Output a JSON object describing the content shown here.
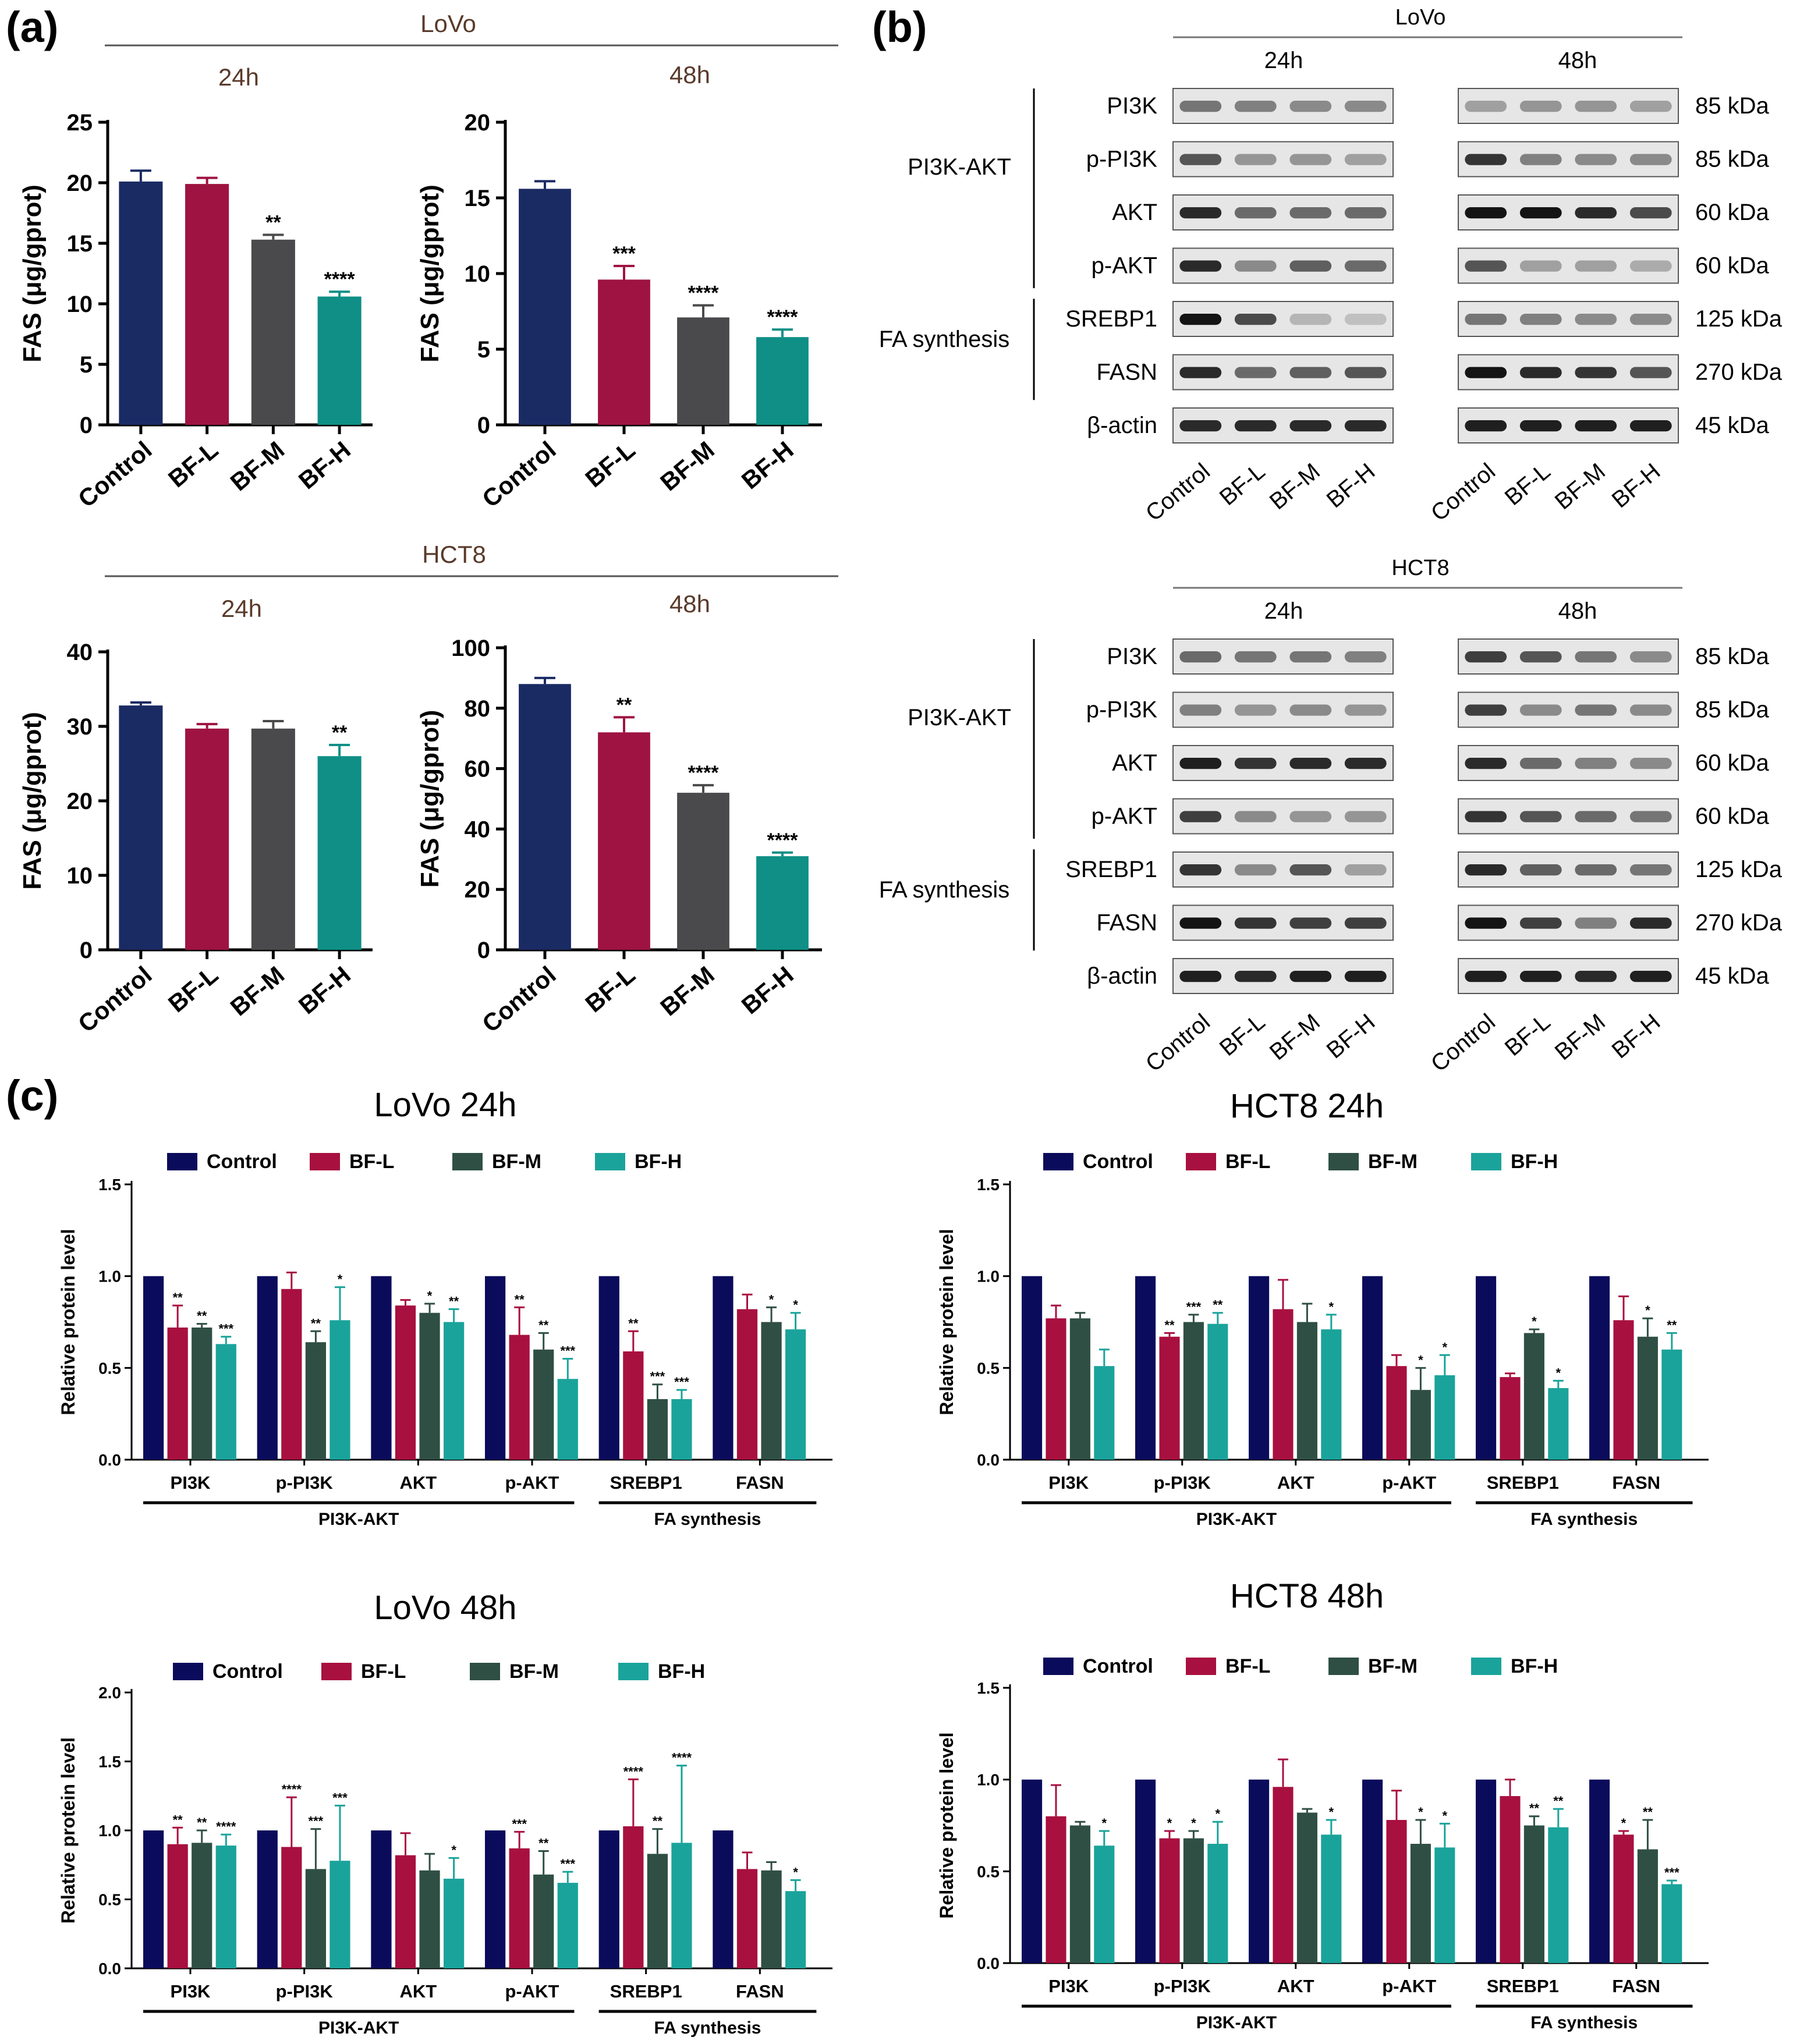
{
  "panels": {
    "a": "(a)",
    "b": "(b)",
    "c": "(c)"
  },
  "colors": {
    "control": "#1a2a63",
    "bfl": "#9e1341",
    "bfm": "#4a4a4c",
    "bfh": "#0f8f86",
    "c_control": "#0b0b5c",
    "c_bfl": "#a8103f",
    "c_bfm": "#2f4f44",
    "c_bfh": "#1aa39b"
  },
  "panel_a": {
    "lovo_title": "LoVo",
    "hct8_title": "HCT8",
    "ylabel": "FAS (μg/gprot)",
    "categories": [
      "Control",
      "BF-L",
      "BF-M",
      "BF-H"
    ]
  },
  "panel_b": {
    "lovo_title": "LoVo",
    "hct8_title": "HCT8",
    "times": [
      "24h",
      "48h"
    ],
    "groups": [
      "PI3K-AKT",
      "FA synthesis"
    ],
    "proteins": [
      "PI3K",
      "p-PI3K",
      "AKT",
      "p-AKT",
      "SREBP1",
      "FASN",
      "β-actin"
    ],
    "kda": [
      "85 kDa",
      "85 kDa",
      "60 kDa",
      "60 kDa",
      "125 kDa",
      "270 kDa",
      "45 kDa"
    ],
    "lanes": [
      "Control",
      "BF-L",
      "BF-M",
      "BF-H"
    ]
  },
  "panel_c": {
    "legend": [
      "Control",
      "BF-L",
      "BF-M",
      "BF-H"
    ],
    "ylabel": "Relative protein level",
    "categories": [
      "PI3K",
      "p-PI3K",
      "AKT",
      "p-AKT",
      "SREBP1",
      "FASN"
    ],
    "group1": "PI3K-AKT",
    "group2": "FA synthesis"
  },
  "chart_data": [
    {
      "id": "a_lovo_24",
      "type": "bar",
      "title": "24h",
      "categories": [
        "Control",
        "BF-L",
        "BF-M",
        "BF-H"
      ],
      "values": [
        20.1,
        19.9,
        15.3,
        10.6
      ],
      "errors": [
        0.9,
        0.5,
        0.4,
        0.4
      ],
      "sig": [
        "",
        "",
        "**",
        "****"
      ],
      "ylim": [
        0,
        25
      ],
      "yticks": [
        0,
        5,
        10,
        15,
        20,
        25
      ],
      "ylabel": "FAS (μg/gprot)"
    },
    {
      "id": "a_lovo_48",
      "type": "bar",
      "title": "48h",
      "categories": [
        "Control",
        "BF-L",
        "BF-M",
        "BF-H"
      ],
      "values": [
        15.6,
        9.6,
        7.1,
        5.8
      ],
      "errors": [
        0.5,
        0.9,
        0.8,
        0.5
      ],
      "sig": [
        "",
        "***",
        "****",
        "****"
      ],
      "ylim": [
        0,
        20
      ],
      "yticks": [
        0,
        5,
        10,
        15,
        20
      ],
      "ylabel": "FAS (μg/gprot)"
    },
    {
      "id": "a_hct8_24",
      "type": "bar",
      "title": "24h",
      "categories": [
        "Control",
        "BF-L",
        "BF-M",
        "BF-H"
      ],
      "values": [
        32.8,
        29.7,
        29.7,
        26.0
      ],
      "errors": [
        0.4,
        0.6,
        1.0,
        1.5
      ],
      "sig": [
        "",
        "",
        "",
        "**"
      ],
      "ylim": [
        0,
        40
      ],
      "yticks": [
        0,
        10,
        20,
        30,
        40
      ],
      "ylabel": "FAS (μg/gprot)"
    },
    {
      "id": "a_hct8_48",
      "type": "bar",
      "title": "48h",
      "categories": [
        "Control",
        "BF-L",
        "BF-M",
        "BF-H"
      ],
      "values": [
        88,
        72,
        52,
        31
      ],
      "errors": [
        2,
        5,
        2.5,
        1.2
      ],
      "sig": [
        "",
        "**",
        "****",
        "****"
      ],
      "ylim": [
        0,
        100
      ],
      "yticks": [
        0,
        20,
        40,
        60,
        80,
        100
      ],
      "ylabel": "FAS (μg/gprot)"
    },
    {
      "id": "c_lovo_24",
      "type": "bar",
      "title": "LoVo 24h",
      "categories": [
        "PI3K",
        "p-PI3K",
        "AKT",
        "p-AKT",
        "SREBP1",
        "FASN"
      ],
      "series": [
        {
          "name": "Control",
          "values": [
            1,
            1,
            1,
            1,
            1,
            1
          ],
          "errors": [
            0,
            0,
            0,
            0,
            0,
            0
          ],
          "sig": [
            "",
            "",
            "",
            "",
            "",
            ""
          ]
        },
        {
          "name": "BF-L",
          "values": [
            0.72,
            0.93,
            0.84,
            0.68,
            0.59,
            0.82
          ],
          "errors": [
            0.12,
            0.09,
            0.03,
            0.15,
            0.11,
            0.08
          ],
          "sig": [
            "**",
            "",
            "",
            "**",
            "**",
            ""
          ]
        },
        {
          "name": "BF-M",
          "values": [
            0.72,
            0.64,
            0.8,
            0.6,
            0.33,
            0.75
          ],
          "errors": [
            0.02,
            0.06,
            0.05,
            0.09,
            0.08,
            0.08
          ],
          "sig": [
            "**",
            "**",
            "*",
            "**",
            "***",
            "*"
          ]
        },
        {
          "name": "BF-H",
          "values": [
            0.63,
            0.76,
            0.75,
            0.44,
            0.33,
            0.71
          ],
          "errors": [
            0.04,
            0.18,
            0.07,
            0.11,
            0.05,
            0.09
          ],
          "sig": [
            "***",
            "*",
            "**",
            "***",
            "***",
            "*"
          ]
        }
      ],
      "ylim": [
        0,
        1.5
      ],
      "yticks": [
        0,
        0.5,
        1.0,
        1.5
      ]
    },
    {
      "id": "c_hct8_24",
      "type": "bar",
      "title": "HCT8 24h",
      "categories": [
        "PI3K",
        "p-PI3K",
        "AKT",
        "p-AKT",
        "SREBP1",
        "FASN"
      ],
      "series": [
        {
          "name": "Control",
          "values": [
            1,
            1,
            1,
            1,
            1,
            1
          ],
          "errors": [
            0,
            0,
            0,
            0,
            0,
            0
          ],
          "sig": [
            "",
            "",
            "",
            "",
            "",
            ""
          ]
        },
        {
          "name": "BF-L",
          "values": [
            0.77,
            0.67,
            0.82,
            0.51,
            0.45,
            0.76
          ],
          "errors": [
            0.07,
            0.02,
            0.16,
            0.06,
            0.02,
            0.13
          ],
          "sig": [
            "",
            "**",
            "",
            "",
            "",
            ""
          ]
        },
        {
          "name": "BF-M",
          "values": [
            0.77,
            0.75,
            0.75,
            0.38,
            0.69,
            0.67
          ],
          "errors": [
            0.03,
            0.04,
            0.1,
            0.12,
            0.02,
            0.1
          ],
          "sig": [
            "",
            "***",
            "",
            "*",
            "*",
            "*"
          ]
        },
        {
          "name": "BF-H",
          "values": [
            0.51,
            0.74,
            0.71,
            0.46,
            0.39,
            0.6
          ],
          "errors": [
            0.09,
            0.06,
            0.08,
            0.11,
            0.04,
            0.09
          ],
          "sig": [
            "",
            "**",
            "*",
            "*",
            "*",
            "**"
          ]
        }
      ],
      "ylim": [
        0,
        1.5
      ],
      "yticks": [
        0,
        0.5,
        1.0,
        1.5
      ]
    },
    {
      "id": "c_lovo_48",
      "type": "bar",
      "title": "LoVo 48h",
      "categories": [
        "PI3K",
        "p-PI3K",
        "AKT",
        "p-AKT",
        "SREBP1",
        "FASN"
      ],
      "series": [
        {
          "name": "Control",
          "values": [
            1,
            1,
            1,
            1,
            1,
            1
          ],
          "errors": [
            0,
            0,
            0,
            0,
            0,
            0
          ],
          "sig": [
            "",
            "",
            "",
            "",
            "",
            ""
          ]
        },
        {
          "name": "BF-L",
          "values": [
            0.9,
            0.88,
            0.82,
            0.87,
            1.03,
            0.72
          ],
          "errors": [
            0.12,
            0.36,
            0.16,
            0.12,
            0.34,
            0.12
          ],
          "sig": [
            "**",
            "****",
            "",
            "***",
            "****",
            ""
          ]
        },
        {
          "name": "BF-M",
          "values": [
            0.91,
            0.72,
            0.71,
            0.68,
            0.83,
            0.71
          ],
          "errors": [
            0.09,
            0.29,
            0.12,
            0.17,
            0.18,
            0.06
          ],
          "sig": [
            "**",
            "***",
            "",
            "**",
            "**",
            ""
          ]
        },
        {
          "name": "BF-H",
          "values": [
            0.89,
            0.78,
            0.65,
            0.62,
            0.91,
            0.56
          ],
          "errors": [
            0.08,
            0.4,
            0.15,
            0.08,
            0.56,
            0.08
          ],
          "sig": [
            "****",
            "***",
            "*",
            "***",
            "****",
            "*"
          ]
        }
      ],
      "ylim": [
        0,
        2.0
      ],
      "yticks": [
        0,
        0.5,
        1.0,
        1.5,
        2.0
      ]
    },
    {
      "id": "c_hct8_48",
      "type": "bar",
      "title": "HCT8 48h",
      "categories": [
        "PI3K",
        "p-PI3K",
        "AKT",
        "p-AKT",
        "SREBP1",
        "FASN"
      ],
      "series": [
        {
          "name": "Control",
          "values": [
            1,
            1,
            1,
            1,
            1,
            1
          ],
          "errors": [
            0,
            0,
            0,
            0,
            0,
            0
          ],
          "sig": [
            "",
            "",
            "",
            "",
            "",
            ""
          ]
        },
        {
          "name": "BF-L",
          "values": [
            0.8,
            0.68,
            0.96,
            0.78,
            0.91,
            0.7
          ],
          "errors": [
            0.17,
            0.04,
            0.15,
            0.16,
            0.09,
            0.02
          ],
          "sig": [
            "",
            "*",
            "",
            "",
            "",
            "*"
          ]
        },
        {
          "name": "BF-M",
          "values": [
            0.75,
            0.68,
            0.82,
            0.65,
            0.75,
            0.62
          ],
          "errors": [
            0.02,
            0.04,
            0.02,
            0.13,
            0.05,
            0.16
          ],
          "sig": [
            "",
            "*",
            "",
            "*",
            "**",
            "**"
          ]
        },
        {
          "name": "BF-H",
          "values": [
            0.64,
            0.65,
            0.7,
            0.63,
            0.74,
            0.43
          ],
          "errors": [
            0.08,
            0.12,
            0.08,
            0.13,
            0.1,
            0.02
          ],
          "sig": [
            "*",
            "*",
            "*",
            "*",
            "**",
            "***"
          ]
        }
      ],
      "ylim": [
        0,
        1.5
      ],
      "yticks": [
        0,
        0.5,
        1.0,
        1.5
      ]
    }
  ]
}
